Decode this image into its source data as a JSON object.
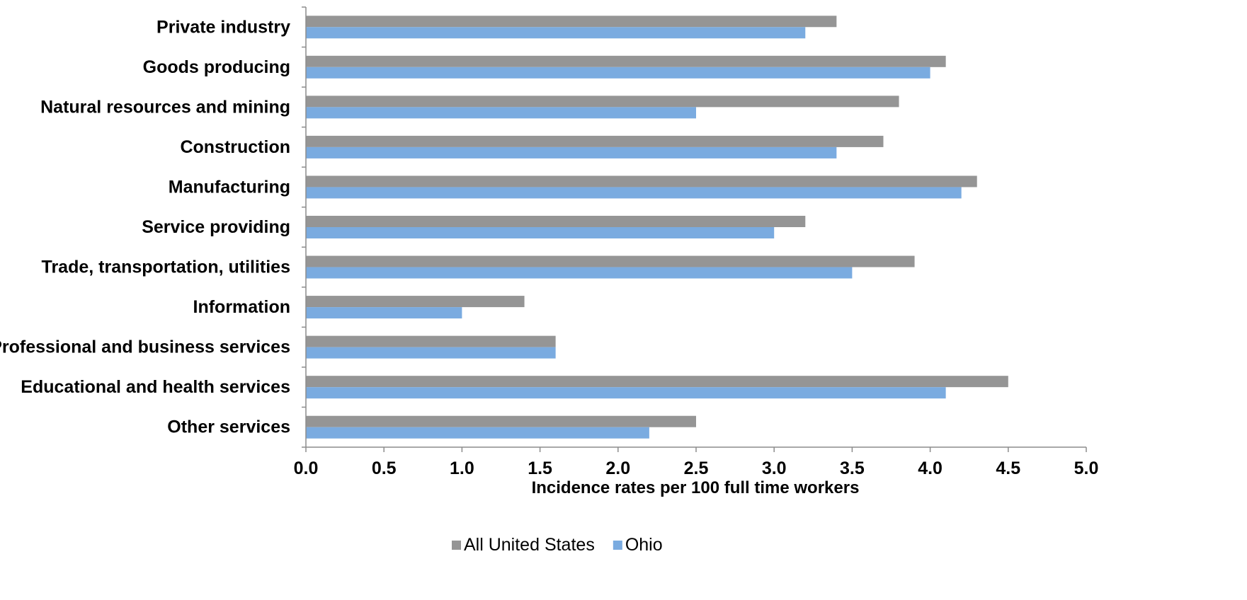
{
  "chart_data": {
    "type": "bar",
    "orientation": "horizontal",
    "categories": [
      "Private industry",
      "Goods producing",
      "Natural resources and mining",
      "Construction",
      "Manufacturing",
      "Service providing",
      "Trade, transportation, utilities",
      "Information",
      "Professional and business services",
      "Educational and health services",
      "Other services"
    ],
    "series": [
      {
        "name": "All United States",
        "color": "#959595",
        "values": [
          3.4,
          4.1,
          3.8,
          3.7,
          4.3,
          3.2,
          3.9,
          1.4,
          1.6,
          4.5,
          2.5
        ]
      },
      {
        "name": "Ohio",
        "color": "#7aabe0",
        "values": [
          3.2,
          4.0,
          2.5,
          3.4,
          4.2,
          3.0,
          3.5,
          1.0,
          1.6,
          4.1,
          2.2
        ]
      }
    ],
    "xlabel": "Incidence rates per 100 full time workers",
    "ylabel": "",
    "xlim": [
      0,
      5
    ],
    "xticks": [
      "0.0",
      "0.5",
      "1.0",
      "1.5",
      "2.0",
      "2.5",
      "3.0",
      "3.5",
      "4.0",
      "4.5",
      "5.0"
    ],
    "grid": false,
    "legend_position": "bottom"
  }
}
